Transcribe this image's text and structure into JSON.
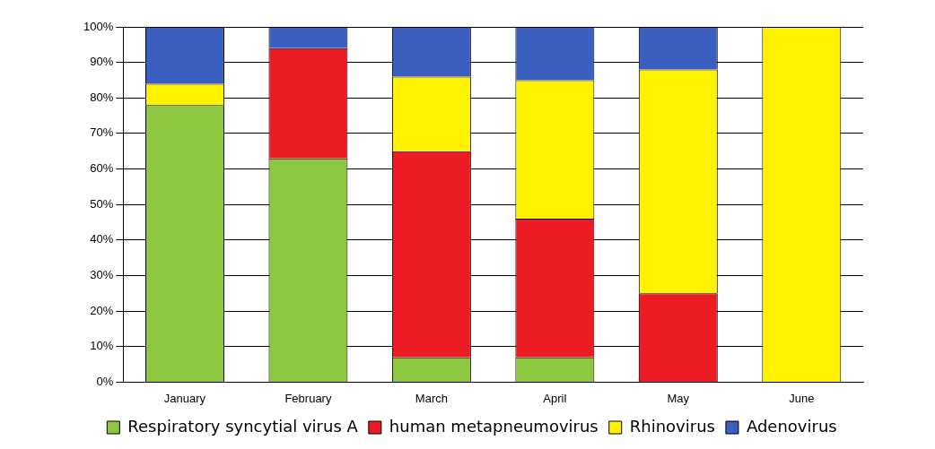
{
  "chart_data": {
    "type": "bar",
    "stacked": true,
    "categories": [
      "January",
      "February",
      "March",
      "April",
      "May",
      "June"
    ],
    "series": [
      {
        "name": "Respiratory syncytial virus A",
        "color": "#8dc63f",
        "values": [
          78,
          63,
          7,
          7,
          0,
          0
        ]
      },
      {
        "name": "human metapneumovirus",
        "color": "#ed1c24",
        "values": [
          0,
          31,
          58,
          39,
          25,
          0
        ]
      },
      {
        "name": "Rhinovirus",
        "color": "#fff200",
        "values": [
          6,
          0,
          21,
          39,
          63,
          100
        ]
      },
      {
        "name": "Adenovirus",
        "color": "#3b5fc0",
        "values": [
          16,
          6,
          14,
          15,
          12,
          0
        ]
      }
    ],
    "ylim": [
      0,
      100
    ],
    "yticks": [
      {
        "value": 0,
        "label": "0%"
      },
      {
        "value": 10,
        "label": "10%"
      },
      {
        "value": 20,
        "label": "20%"
      },
      {
        "value": 30,
        "label": "30%"
      },
      {
        "value": 40,
        "label": "40%"
      },
      {
        "value": 50,
        "label": "50%"
      },
      {
        "value": 60,
        "label": "60%"
      },
      {
        "value": 70,
        "label": "70%"
      },
      {
        "value": 80,
        "label": "80%"
      },
      {
        "value": 90,
        "label": "90%"
      },
      {
        "value": 100,
        "label": "100%"
      }
    ],
    "grid": "y",
    "legend": "bottom"
  }
}
